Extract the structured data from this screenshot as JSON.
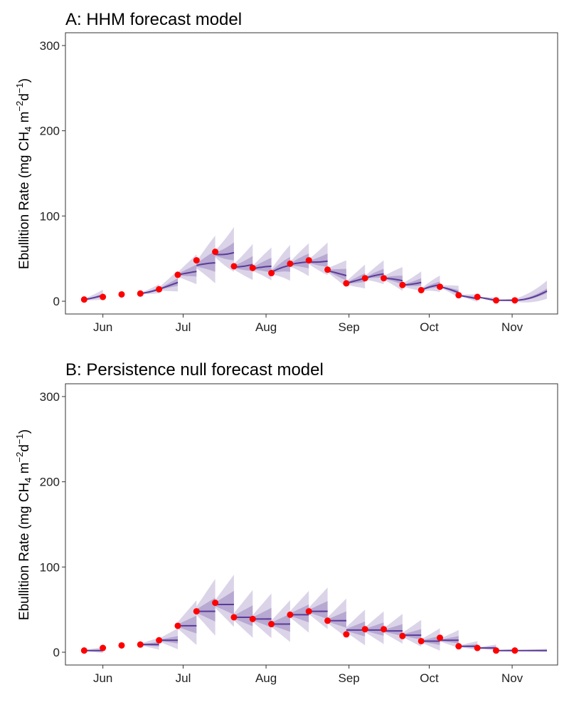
{
  "chart_data": [
    {
      "type": "line",
      "title": "A: HHM forecast model",
      "ylabel": "Ebullition Rate (mg CH",
      "ylabel_sub": "4",
      "ylabel_mid": " m",
      "ylabel_sup1": "−2",
      "ylabel_d": "d",
      "ylabel_sup2": "−1",
      "ylabel_end": ")",
      "ylim": [
        -15,
        315
      ],
      "yticks": [
        0,
        100,
        200,
        300
      ],
      "xticks": [
        "Jun",
        "Jul",
        "Aug",
        "Sep",
        "Oct",
        "Nov"
      ],
      "xtick_days": [
        152,
        182,
        213,
        244,
        274,
        305
      ],
      "xlim": [
        138,
        322
      ],
      "grid": false,
      "series_color": "#5b3b98",
      "band_color": "#5b3b98",
      "point_color": "#ff0000",
      "observed": [
        {
          "day": 145,
          "value": 2
        },
        {
          "day": 152,
          "value": 5
        },
        {
          "day": 159,
          "value": 8
        },
        {
          "day": 166,
          "value": 9
        },
        {
          "day": 173,
          "value": 14
        },
        {
          "day": 180,
          "value": 31
        },
        {
          "day": 187,
          "value": 48
        },
        {
          "day": 194,
          "value": 58
        },
        {
          "day": 201,
          "value": 41
        },
        {
          "day": 208,
          "value": 39
        },
        {
          "day": 215,
          "value": 33
        },
        {
          "day": 222,
          "value": 44
        },
        {
          "day": 229,
          "value": 48
        },
        {
          "day": 236,
          "value": 37
        },
        {
          "day": 243,
          "value": 21
        },
        {
          "day": 250,
          "value": 27
        },
        {
          "day": 257,
          "value": 27
        },
        {
          "day": 264,
          "value": 19
        },
        {
          "day": 271,
          "value": 13
        },
        {
          "day": 278,
          "value": 17
        },
        {
          "day": 285,
          "value": 7
        },
        {
          "day": 292,
          "value": 5
        },
        {
          "day": 299,
          "value": 1
        },
        {
          "day": 306,
          "value": 1
        }
      ],
      "forecast_segments": [
        {
          "start": 145,
          "end": 152,
          "y": [
            2,
            4,
            7
          ],
          "spread": [
            0.6,
            2.0,
            6.5
          ]
        },
        {
          "start": 166,
          "end": 173,
          "y": [
            9,
            11,
            14
          ],
          "spread": [
            0.6,
            2.0,
            6.0
          ]
        },
        {
          "start": 173,
          "end": 180,
          "y": [
            14,
            18,
            22
          ],
          "spread": [
            0.8,
            5.0,
            14.0
          ]
        },
        {
          "start": 180,
          "end": 187,
          "y": [
            31,
            33,
            35
          ],
          "spread": [
            0.8,
            8.0,
            20.0
          ]
        },
        {
          "start": 187,
          "end": 194,
          "y": [
            42,
            44,
            45
          ],
          "spread": [
            1.0,
            14.0,
            32.0
          ]
        },
        {
          "start": 194,
          "end": 201,
          "y": [
            55,
            55,
            57
          ],
          "spread": [
            1.0,
            12.0,
            30.0
          ]
        },
        {
          "start": 201,
          "end": 208,
          "y": [
            40,
            41,
            43
          ],
          "spread": [
            1.0,
            10.0,
            24.0
          ]
        },
        {
          "start": 208,
          "end": 215,
          "y": [
            38,
            40,
            41
          ],
          "spread": [
            1.0,
            10.0,
            22.0
          ]
        },
        {
          "start": 215,
          "end": 222,
          "y": [
            34,
            39,
            42
          ],
          "spread": [
            1.0,
            10.0,
            24.0
          ]
        },
        {
          "start": 222,
          "end": 229,
          "y": [
            43,
            45,
            46
          ],
          "spread": [
            1.0,
            10.0,
            22.0
          ]
        },
        {
          "start": 229,
          "end": 236,
          "y": [
            46,
            46,
            47
          ],
          "spread": [
            1.0,
            9.0,
            22.0
          ]
        },
        {
          "start": 236,
          "end": 243,
          "y": [
            36,
            33,
            30
          ],
          "spread": [
            1.0,
            8.0,
            18.0
          ]
        },
        {
          "start": 243,
          "end": 250,
          "y": [
            21,
            24,
            27
          ],
          "spread": [
            1.0,
            6.0,
            16.0
          ]
        },
        {
          "start": 250,
          "end": 257,
          "y": [
            27,
            30,
            32
          ],
          "spread": [
            1.0,
            6.0,
            16.0
          ]
        },
        {
          "start": 257,
          "end": 264,
          "y": [
            27,
            26,
            24
          ],
          "spread": [
            1.0,
            6.0,
            16.0
          ]
        },
        {
          "start": 264,
          "end": 271,
          "y": [
            19,
            20,
            22
          ],
          "spread": [
            0.8,
            5.0,
            13.0
          ]
        },
        {
          "start": 271,
          "end": 278,
          "y": [
            13,
            17,
            19
          ],
          "spread": [
            0.8,
            4.0,
            11.0
          ]
        },
        {
          "start": 278,
          "end": 285,
          "y": [
            17,
            14,
            10
          ],
          "spread": [
            0.8,
            3.0,
            8.0
          ]
        },
        {
          "start": 285,
          "end": 292,
          "y": [
            7,
            5,
            3
          ],
          "spread": [
            0.6,
            2.0,
            5.0
          ]
        },
        {
          "start": 292,
          "end": 299,
          "y": [
            5,
            3,
            1
          ],
          "spread": [
            0.5,
            1.5,
            3.0
          ]
        },
        {
          "start": 299,
          "end": 306,
          "y": [
            1,
            1,
            1
          ],
          "spread": [
            0.4,
            1.0,
            2.0
          ]
        },
        {
          "start": 306,
          "end": 318,
          "y": [
            1,
            4,
            12
          ],
          "spread": [
            0.6,
            3.0,
            12.0
          ]
        }
      ]
    },
    {
      "type": "line",
      "title": "B: Persistence null forecast model",
      "ylabel": "Ebullition Rate (mg CH",
      "ylabel_sub": "4",
      "ylabel_mid": " m",
      "ylabel_sup1": "−2",
      "ylabel_d": "d",
      "ylabel_sup2": "−1",
      "ylabel_end": ")",
      "ylim": [
        -15,
        315
      ],
      "yticks": [
        0,
        100,
        200,
        300
      ],
      "xticks": [
        "Jun",
        "Jul",
        "Aug",
        "Sep",
        "Oct",
        "Nov"
      ],
      "xtick_days": [
        152,
        182,
        213,
        244,
        274,
        305
      ],
      "xlim": [
        138,
        322
      ],
      "grid": false,
      "series_color": "#5b3b98",
      "band_color": "#5b3b98",
      "point_color": "#ff0000",
      "observed": [
        {
          "day": 145,
          "value": 2
        },
        {
          "day": 152,
          "value": 5
        },
        {
          "day": 159,
          "value": 8
        },
        {
          "day": 166,
          "value": 9
        },
        {
          "day": 173,
          "value": 14
        },
        {
          "day": 180,
          "value": 31
        },
        {
          "day": 187,
          "value": 48
        },
        {
          "day": 194,
          "value": 58
        },
        {
          "day": 201,
          "value": 41
        },
        {
          "day": 208,
          "value": 39
        },
        {
          "day": 215,
          "value": 33
        },
        {
          "day": 222,
          "value": 44
        },
        {
          "day": 229,
          "value": 48
        },
        {
          "day": 236,
          "value": 37
        },
        {
          "day": 243,
          "value": 21
        },
        {
          "day": 250,
          "value": 27
        },
        {
          "day": 257,
          "value": 27
        },
        {
          "day": 264,
          "value": 19
        },
        {
          "day": 271,
          "value": 13
        },
        {
          "day": 278,
          "value": 17
        },
        {
          "day": 285,
          "value": 7
        },
        {
          "day": 292,
          "value": 5
        },
        {
          "day": 299,
          "value": 2
        },
        {
          "day": 306,
          "value": 2
        }
      ],
      "forecast_segments": [
        {
          "start": 145,
          "end": 152,
          "y": [
            2,
            2,
            2
          ],
          "spread": [
            0.6,
            1.5,
            4.0
          ]
        },
        {
          "start": 166,
          "end": 173,
          "y": [
            9,
            9,
            9
          ],
          "spread": [
            0.6,
            3.0,
            8.0
          ]
        },
        {
          "start": 173,
          "end": 180,
          "y": [
            14,
            14,
            14
          ],
          "spread": [
            0.8,
            5.0,
            14.0
          ]
        },
        {
          "start": 180,
          "end": 187,
          "y": [
            31,
            31,
            31
          ],
          "spread": [
            0.8,
            12.0,
            30.0
          ]
        },
        {
          "start": 187,
          "end": 194,
          "y": [
            48,
            48,
            48
          ],
          "spread": [
            1.0,
            16.0,
            38.0
          ]
        },
        {
          "start": 194,
          "end": 201,
          "y": [
            56,
            56,
            56
          ],
          "spread": [
            1.0,
            16.0,
            35.0
          ]
        },
        {
          "start": 201,
          "end": 208,
          "y": [
            41,
            41,
            41
          ],
          "spread": [
            1.0,
            14.0,
            32.0
          ]
        },
        {
          "start": 208,
          "end": 215,
          "y": [
            39,
            39,
            39
          ],
          "spread": [
            1.0,
            13.0,
            30.0
          ]
        },
        {
          "start": 215,
          "end": 222,
          "y": [
            33,
            33,
            33
          ],
          "spread": [
            1.0,
            12.0,
            28.0
          ]
        },
        {
          "start": 222,
          "end": 229,
          "y": [
            44,
            44,
            44
          ],
          "spread": [
            1.0,
            12.0,
            28.0
          ]
        },
        {
          "start": 229,
          "end": 236,
          "y": [
            48,
            48,
            48
          ],
          "spread": [
            1.0,
            12.0,
            28.0
          ]
        },
        {
          "start": 236,
          "end": 243,
          "y": [
            37,
            37,
            37
          ],
          "spread": [
            1.0,
            11.0,
            26.0
          ]
        },
        {
          "start": 243,
          "end": 250,
          "y": [
            26,
            26,
            26
          ],
          "spread": [
            1.0,
            10.0,
            24.0
          ]
        },
        {
          "start": 250,
          "end": 257,
          "y": [
            26,
            26,
            26
          ],
          "spread": [
            1.0,
            9.0,
            22.0
          ]
        },
        {
          "start": 257,
          "end": 264,
          "y": [
            25,
            25,
            25
          ],
          "spread": [
            1.0,
            8.0,
            20.0
          ]
        },
        {
          "start": 264,
          "end": 271,
          "y": [
            20,
            20,
            20
          ],
          "spread": [
            0.8,
            7.0,
            18.0
          ]
        },
        {
          "start": 271,
          "end": 278,
          "y": [
            13,
            13,
            13
          ],
          "spread": [
            0.8,
            6.0,
            15.0
          ]
        },
        {
          "start": 278,
          "end": 285,
          "y": [
            14,
            14,
            14
          ],
          "spread": [
            0.8,
            5.0,
            12.0
          ]
        },
        {
          "start": 285,
          "end": 292,
          "y": [
            7,
            7,
            7
          ],
          "spread": [
            0.6,
            2.5,
            6.0
          ]
        },
        {
          "start": 292,
          "end": 299,
          "y": [
            5,
            5,
            5
          ],
          "spread": [
            0.5,
            2.0,
            4.0
          ]
        },
        {
          "start": 299,
          "end": 306,
          "y": [
            2,
            2,
            2
          ],
          "spread": [
            0.4,
            1.0,
            2.0
          ]
        },
        {
          "start": 306,
          "end": 318,
          "y": [
            2,
            2,
            2
          ],
          "spread": [
            0.4,
            1.0,
            2.0
          ]
        }
      ]
    }
  ]
}
